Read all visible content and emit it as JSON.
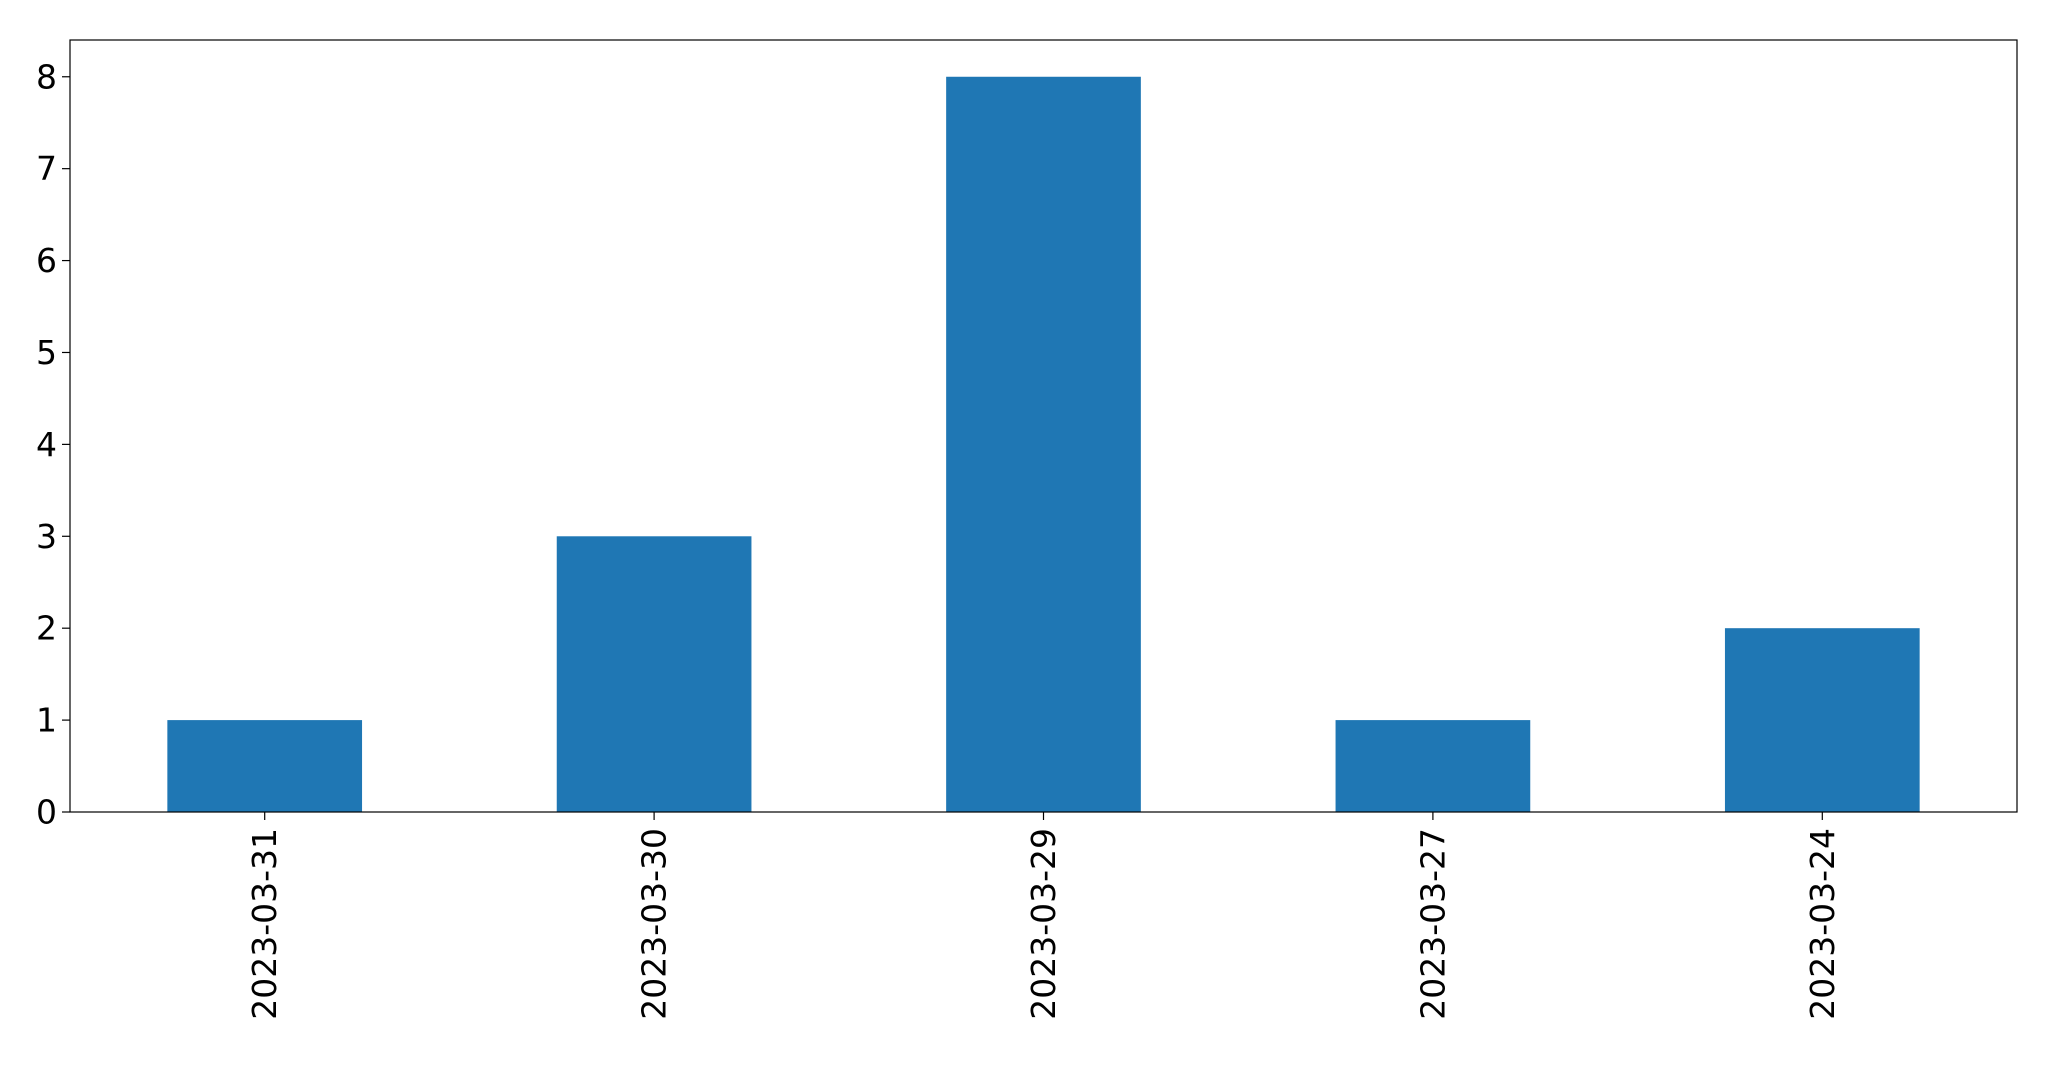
{
  "chart_data": {
    "type": "bar",
    "categories": [
      "2023-03-31",
      "2023-03-30",
      "2023-03-29",
      "2023-03-27",
      "2023-03-24"
    ],
    "values": [
      1,
      3,
      8,
      1,
      2
    ],
    "ylim": [
      0,
      8.4
    ],
    "yticks": [
      0,
      1,
      2,
      3,
      4,
      5,
      6,
      7,
      8
    ],
    "xlabel": "",
    "ylabel": "",
    "title": "",
    "grid": false,
    "bar_color": "#1f77b4",
    "x_tick_rotation": "vertical"
  }
}
